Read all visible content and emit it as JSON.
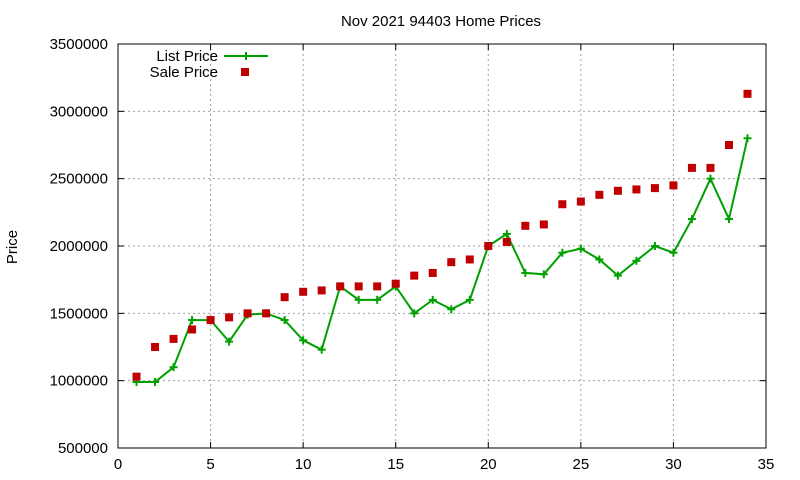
{
  "chart_data": {
    "type": "line",
    "title": "Nov 2021 94403 Home Prices",
    "xlabel": "",
    "ylabel": "Price",
    "xlim": [
      0,
      35
    ],
    "ylim": [
      500000,
      3500000
    ],
    "grid": true,
    "legend_position": "top-left",
    "x_ticks": [
      "0",
      "5",
      "10",
      "15",
      "20",
      "25",
      "30",
      "35"
    ],
    "y_ticks": [
      "500000",
      "1000000",
      "1500000",
      "2000000",
      "2500000",
      "3000000",
      "3500000"
    ],
    "x": [
      1,
      2,
      3,
      4,
      5,
      6,
      7,
      8,
      9,
      10,
      11,
      12,
      13,
      14,
      15,
      16,
      17,
      18,
      19,
      20,
      21,
      22,
      23,
      24,
      25,
      26,
      27,
      28,
      29,
      30,
      31,
      32,
      33,
      34
    ],
    "series": [
      {
        "name": "List Price",
        "style": "linespoints",
        "color": "#00a000",
        "marker": "plus",
        "values": [
          990000,
          990000,
          1100000,
          1450000,
          1450000,
          1290000,
          1490000,
          1500000,
          1450000,
          1300000,
          1230000,
          1700000,
          1600000,
          1600000,
          1700000,
          1500000,
          1600000,
          1530000,
          1600000,
          2000000,
          2090000,
          1800000,
          1790000,
          1950000,
          1980000,
          1900000,
          1780000,
          1890000,
          2000000,
          1950000,
          2200000,
          2500000,
          2200000,
          2800000
        ]
      },
      {
        "name": "Sale Price",
        "style": "points",
        "color": "#c00000",
        "marker": "square",
        "values": [
          1030000,
          1250000,
          1310000,
          1380000,
          1450000,
          1470000,
          1500000,
          1500000,
          1620000,
          1660000,
          1670000,
          1700000,
          1700000,
          1700000,
          1720000,
          1780000,
          1800000,
          1880000,
          1900000,
          2000000,
          2030000,
          2150000,
          2160000,
          2310000,
          2330000,
          2380000,
          2410000,
          2420000,
          2430000,
          2450000,
          2580000,
          2580000,
          2750000,
          3130000
        ]
      }
    ]
  }
}
